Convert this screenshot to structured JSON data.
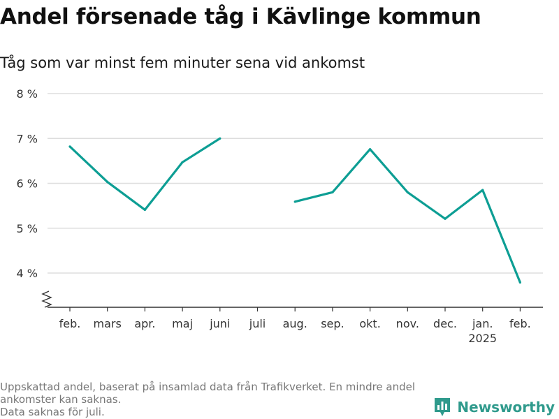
{
  "title": "Andel försenade tåg i Kävlinge kommun",
  "subtitle": "Tåg som var minst fem minuter sena vid ankomst",
  "footnote": {
    "line1": "Uppskattad andel, baserat på insamlad data från Trafikverket. En mindre andel",
    "line2": "ankomster kan saknas.",
    "line3": "Data saknas för juli."
  },
  "brand": {
    "name": "Newsworthy",
    "icon": "bar-chart-icon",
    "color": "#2f9a8c"
  },
  "chart_data": {
    "type": "line",
    "title": "Andel försenade tåg i Kävlinge kommun",
    "subtitle": "Tåg som var minst fem minuter sena vid ankomst",
    "xlabel": "",
    "ylabel": "",
    "categories": [
      "feb.",
      "mars",
      "apr.",
      "maj",
      "juni",
      "juli",
      "aug.",
      "sep.",
      "okt.",
      "nov.",
      "dec.",
      "jan.",
      "feb."
    ],
    "year_label": {
      "category_index": 11,
      "text": "2025"
    },
    "series": [
      {
        "values": [
          6.82,
          6.03,
          5.41,
          6.47,
          7.0,
          null,
          5.59,
          5.8,
          6.76,
          5.8,
          5.21,
          5.85,
          3.79
        ],
        "color": "#0d9e94"
      }
    ],
    "ylim": [
      3.2,
      8.0
    ],
    "yticks": [
      4,
      5,
      6,
      7,
      8
    ],
    "ytick_labels": [
      "4 %",
      "5 %",
      "6 %",
      "7 %",
      "8 %"
    ],
    "axis_break": true,
    "grid": true,
    "legend": "none"
  }
}
